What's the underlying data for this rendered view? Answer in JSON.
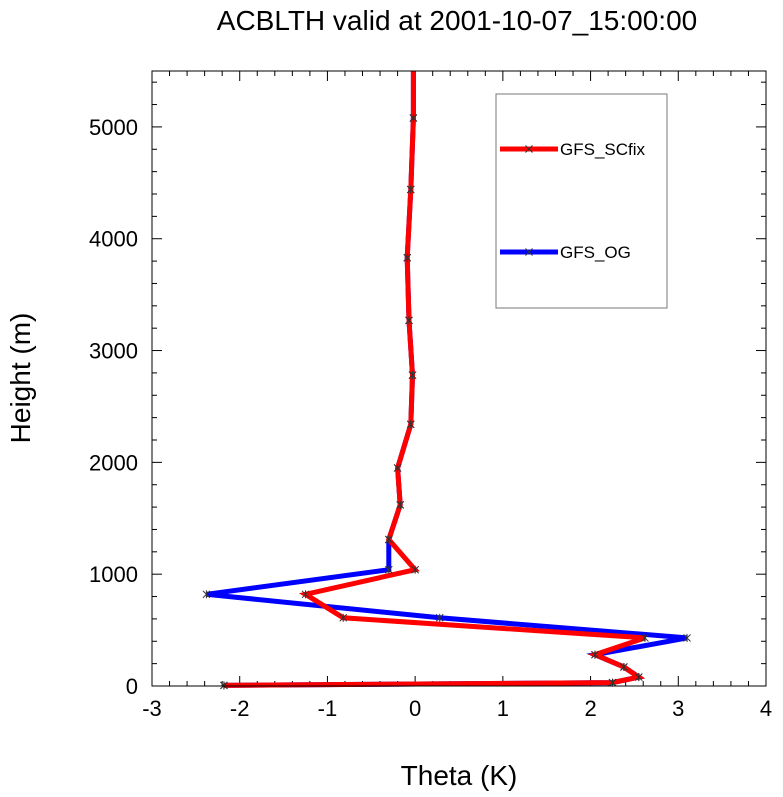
{
  "chart_data": {
    "type": "line",
    "title": "ACBLTH valid at 2001-10-07_15:00:00",
    "xlabel": "Theta (K)",
    "ylabel": "Height (m)",
    "xlim": [
      -3,
      4
    ],
    "ylim": [
      0,
      5500
    ],
    "xticks": [
      "-3",
      "-2",
      "-1",
      "0",
      "1",
      "2",
      "3",
      "4"
    ],
    "xtick_values": [
      -3,
      -2,
      -1,
      0,
      1,
      2,
      3,
      4
    ],
    "yticks": [
      "0",
      "1000",
      "2000",
      "3000",
      "4000",
      "5000"
    ],
    "ytick_values": [
      0,
      1000,
      2000,
      3000,
      4000,
      5000
    ],
    "legend_position": "top-right",
    "series": [
      {
        "name": "GFS_OG",
        "color": "#0000ff",
        "points": [
          [
            -2.18,
            5
          ],
          [
            2.25,
            30
          ],
          [
            2.55,
            80
          ],
          [
            2.38,
            170
          ],
          [
            2.05,
            280
          ],
          [
            3.1,
            430
          ],
          [
            0.28,
            610
          ],
          [
            -2.38,
            820
          ],
          [
            -0.3,
            1040
          ],
          [
            -0.3,
            1310
          ],
          [
            -0.17,
            1620
          ],
          [
            -0.2,
            1950
          ],
          [
            -0.05,
            2340
          ],
          [
            -0.03,
            2780
          ],
          [
            -0.07,
            3270
          ],
          [
            -0.09,
            3830
          ],
          [
            -0.05,
            4440
          ],
          [
            -0.02,
            5080
          ],
          [
            -0.02,
            5500
          ]
        ]
      },
      {
        "name": "GFS_SCfix",
        "color": "#ff0000",
        "points": [
          [
            -2.18,
            5
          ],
          [
            2.25,
            30
          ],
          [
            2.55,
            80
          ],
          [
            2.38,
            170
          ],
          [
            2.05,
            280
          ],
          [
            2.62,
            430
          ],
          [
            -0.82,
            610
          ],
          [
            -1.25,
            820
          ],
          [
            0.0,
            1040
          ],
          [
            -0.3,
            1310
          ],
          [
            -0.17,
            1620
          ],
          [
            -0.2,
            1950
          ],
          [
            -0.05,
            2340
          ],
          [
            -0.03,
            2780
          ],
          [
            -0.07,
            3270
          ],
          [
            -0.09,
            3830
          ],
          [
            -0.05,
            4440
          ],
          [
            -0.02,
            5080
          ],
          [
            -0.02,
            5500
          ]
        ]
      }
    ],
    "legend_order": [
      "GFS_SCfix",
      "GFS_OG"
    ]
  }
}
